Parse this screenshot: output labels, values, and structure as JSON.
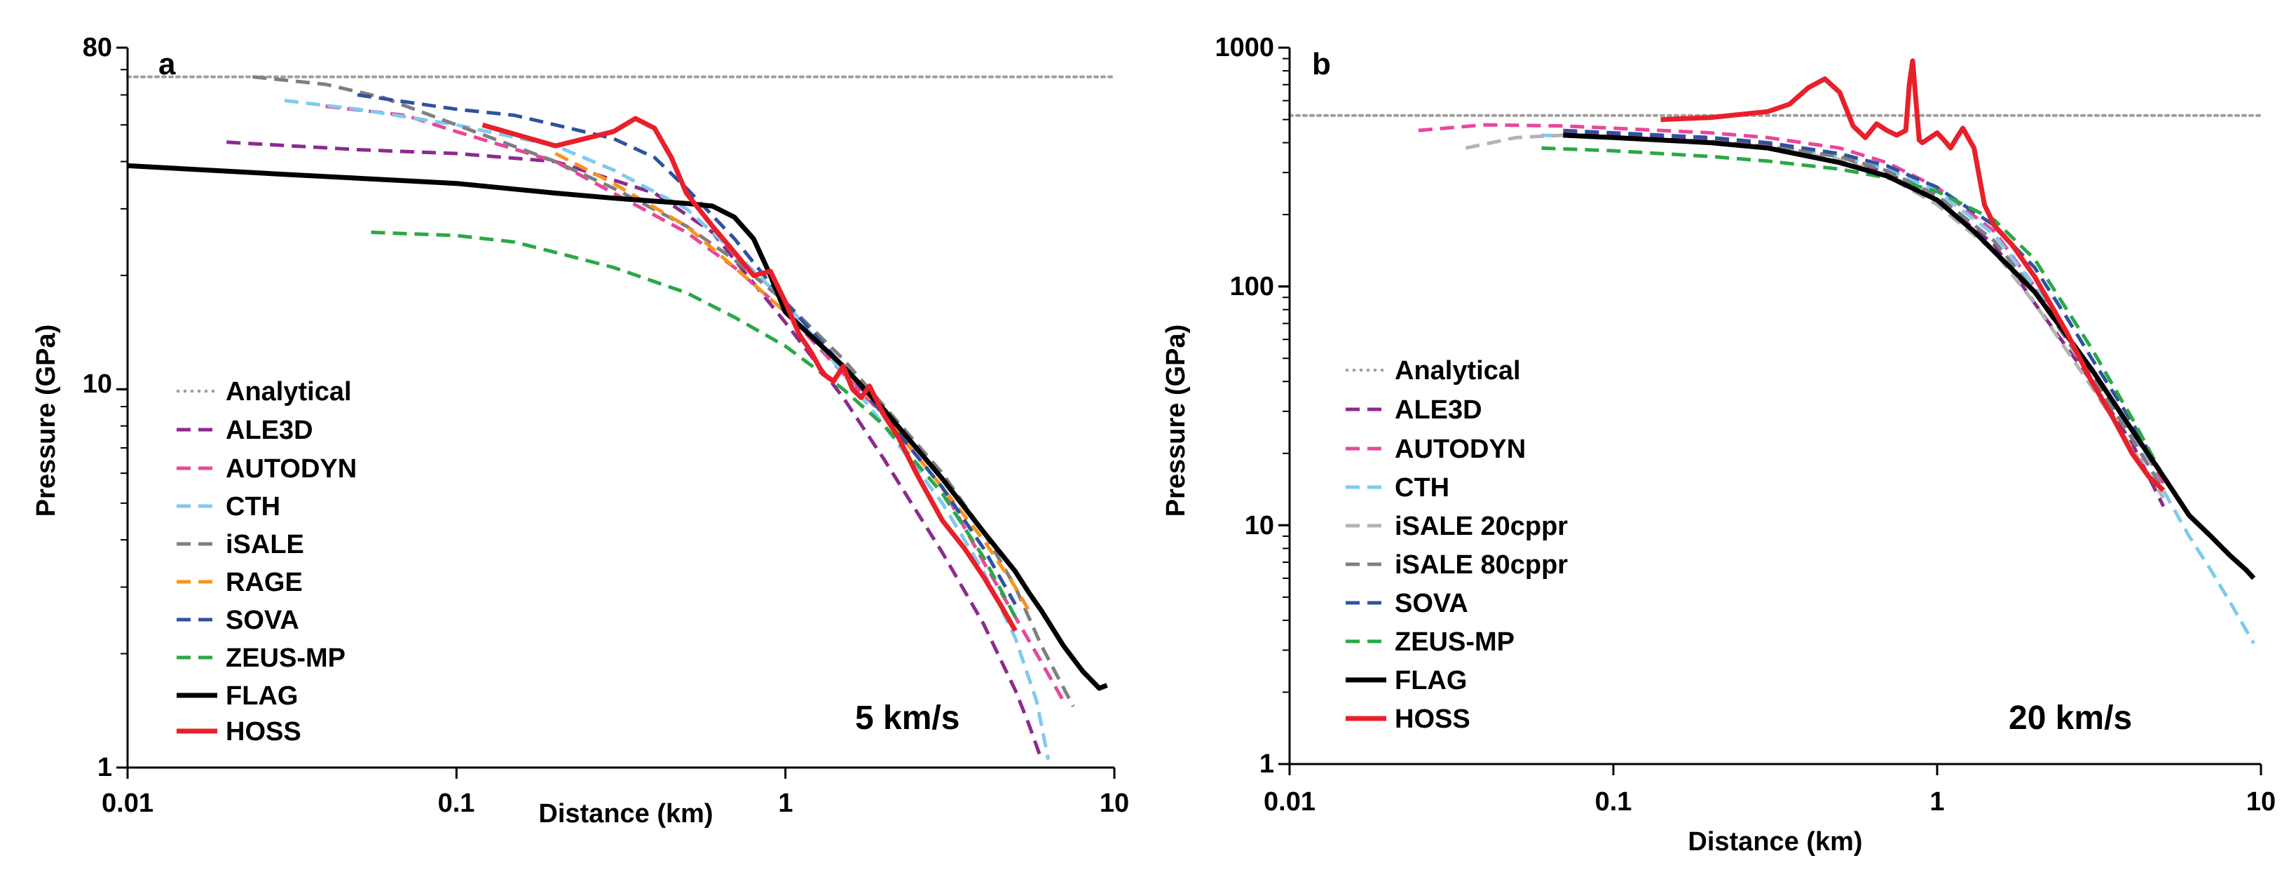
{
  "chart_data": [
    {
      "type": "line",
      "panel_label": "a",
      "xscale": "log",
      "yscale": "log",
      "xlim": [
        0.01,
        10
      ],
      "ylim": [
        1,
        80
      ],
      "xlabel": "Distance (km)",
      "ylabel": "Pressure (GPa)",
      "x_ticks": [
        {
          "v": 0.01,
          "label": "0.01"
        },
        {
          "v": 0.1,
          "label": "0.1"
        },
        {
          "v": 1,
          "label": "1"
        },
        {
          "v": 10,
          "label": "10"
        }
      ],
      "y_ticks": [
        {
          "v": 1,
          "label": "1"
        },
        {
          "v": 10,
          "label": "10"
        },
        {
          "v": 80,
          "label": "80"
        }
      ],
      "annotation": "5 km/s",
      "legend_position": "left",
      "series": [
        {
          "name": "Analytical",
          "color": "#9e9e9e",
          "dash": "dotted",
          "x": [
            0.01,
            10
          ],
          "y": [
            67,
            67
          ]
        },
        {
          "name": "ALE3D",
          "color": "#8b2a8f",
          "dash": "dashed",
          "x": [
            0.02,
            0.05,
            0.1,
            0.2,
            0.4,
            0.6,
            1.0,
            1.5,
            2.0,
            3.0,
            4.0,
            5.0,
            5.5,
            6.0
          ],
          "y": [
            45,
            43,
            42,
            40,
            33,
            26,
            15,
            9.5,
            6.5,
            3.7,
            2.4,
            1.6,
            1.3,
            1.05
          ]
        },
        {
          "name": "AUTODYN",
          "color": "#e8479a",
          "dash": "dashed",
          "x": [
            0.04,
            0.07,
            0.1,
            0.2,
            0.3,
            0.5,
            0.7,
            1.0,
            1.5,
            2.0,
            3.0,
            4.0,
            5.0,
            6.0,
            7.0
          ],
          "y": [
            56,
            53,
            48,
            40,
            33,
            26,
            21,
            16,
            11,
            8.5,
            5.5,
            3.5,
            2.5,
            1.9,
            1.5
          ]
        },
        {
          "name": "CTH",
          "color": "#7ecbed",
          "dash": "dashed",
          "x": [
            0.03,
            0.05,
            0.1,
            0.2,
            0.3,
            0.5,
            0.7,
            1.0,
            1.5,
            2.0,
            3.0,
            4.0,
            5.0,
            5.8,
            6.3
          ],
          "y": [
            58,
            55,
            50,
            44,
            38,
            30,
            23,
            17,
            11,
            8,
            5,
            3.3,
            2.2,
            1.5,
            1.05
          ]
        },
        {
          "name": "iSALE",
          "color": "#7f7f7f",
          "dash": "dashed",
          "x": [
            0.024,
            0.04,
            0.06,
            0.1,
            0.2,
            0.3,
            0.5,
            0.7,
            1.0,
            1.5,
            2.0,
            3.0,
            4.0,
            5.0,
            6.0,
            7.5
          ],
          "y": [
            67,
            64,
            59,
            50,
            40,
            34,
            27,
            22,
            17,
            12,
            9,
            6,
            4.2,
            3,
            2.1,
            1.45
          ]
        },
        {
          "name": "RAGE",
          "color": "#f7941d",
          "dash": "dashed",
          "x": [
            0.2,
            0.3,
            0.5,
            0.7,
            1.0,
            1.5,
            2.0,
            3.0,
            4.0,
            5.0,
            5.5
          ],
          "y": [
            42,
            35,
            27,
            21,
            16,
            11.5,
            8.5,
            5.5,
            4.0,
            3.0,
            2.6
          ]
        },
        {
          "name": "SOVA",
          "color": "#2f52a0",
          "dash": "dashed",
          "x": [
            0.05,
            0.1,
            0.15,
            0.2,
            0.3,
            0.4,
            0.5,
            0.7,
            1.0,
            1.5,
            2.0,
            3.0,
            4.0,
            5.0
          ],
          "y": [
            60,
            55,
            53,
            50,
            46,
            41,
            34,
            25,
            17,
            11.5,
            8.5,
            5.5,
            3.8,
            2.7
          ]
        },
        {
          "name": "ZEUS-MP",
          "color": "#2aa845",
          "dash": "dashed",
          "x": [
            0.055,
            0.1,
            0.15,
            0.2,
            0.3,
            0.5,
            0.7,
            1.0,
            1.5,
            2.0,
            3.0,
            4.0,
            5.0
          ],
          "y": [
            26,
            25.5,
            24.5,
            23,
            21,
            18,
            15.5,
            13,
            10,
            8,
            5.3,
            3.6,
            2.5
          ]
        },
        {
          "name": "FLAG",
          "color": "#000000",
          "dash": "solid",
          "x": [
            0.01,
            0.03,
            0.1,
            0.2,
            0.3,
            0.5,
            0.6,
            0.7,
            0.8,
            0.9,
            1.0,
            1.5,
            2.0,
            3.0,
            4.0,
            5.0,
            5.5,
            6.0,
            7.0,
            8.0,
            9.0,
            9.5
          ],
          "y": [
            39,
            37,
            35,
            33,
            32,
            31,
            30.5,
            28.5,
            25,
            20,
            16,
            11.5,
            8.8,
            5.8,
            4.2,
            3.3,
            2.9,
            2.6,
            2.1,
            1.8,
            1.62,
            1.65
          ]
        },
        {
          "name": "HOSS",
          "color": "#e8202a",
          "dash": "solid",
          "x": [
            0.12,
            0.2,
            0.3,
            0.35,
            0.4,
            0.45,
            0.5,
            0.6,
            0.7,
            0.8,
            0.9,
            1.0,
            1.1,
            1.2,
            1.3,
            1.4,
            1.5,
            1.6,
            1.7,
            1.8,
            2.0,
            2.2,
            2.5,
            3.0,
            3.5,
            4.0,
            4.5,
            5.0
          ],
          "y": [
            50,
            44,
            48,
            52,
            49,
            41,
            33,
            27,
            23,
            20,
            20.5,
            17,
            14,
            12.5,
            11,
            10.5,
            11.5,
            10,
            9.5,
            10.2,
            8.5,
            7.5,
            6.0,
            4.5,
            3.8,
            3.2,
            2.7,
            2.3
          ]
        }
      ]
    },
    {
      "type": "line",
      "panel_label": "b",
      "xscale": "log",
      "yscale": "log",
      "xlim": [
        0.01,
        10
      ],
      "ylim": [
        1,
        1000
      ],
      "xlabel": "Distance (km)",
      "ylabel": "Pressure (GPa)",
      "x_ticks": [
        {
          "v": 0.01,
          "label": "0.01"
        },
        {
          "v": 0.1,
          "label": "0.1"
        },
        {
          "v": 1,
          "label": "1"
        },
        {
          "v": 10,
          "label": "10"
        }
      ],
      "y_ticks": [
        {
          "v": 1,
          "label": "1"
        },
        {
          "v": 10,
          "label": "10"
        },
        {
          "v": 100,
          "label": "100"
        },
        {
          "v": 1000,
          "label": "1000"
        }
      ],
      "annotation": "20 km/s",
      "legend_position": "left",
      "series": [
        {
          "name": "Analytical",
          "color": "#9e9e9e",
          "dash": "dotted",
          "x": [
            0.01,
            10
          ],
          "y": [
            520,
            520
          ]
        },
        {
          "name": "ALE3D",
          "color": "#8b2a8f",
          "dash": "dashed",
          "x": [
            0.07,
            0.1,
            0.2,
            0.3,
            0.5,
            0.7,
            1.0,
            1.5,
            2.0,
            3.0,
            4.0,
            5.0
          ],
          "y": [
            440,
            430,
            410,
            390,
            350,
            300,
            230,
            150,
            85,
            40,
            22,
            12
          ]
        },
        {
          "name": "AUTODYN",
          "color": "#e8479a",
          "dash": "dashed",
          "x": [
            0.025,
            0.04,
            0.07,
            0.1,
            0.2,
            0.3,
            0.5,
            0.7,
            1.0,
            1.5,
            2.0,
            3.0,
            4.0,
            5.0
          ],
          "y": [
            450,
            475,
            470,
            460,
            440,
            420,
            380,
            330,
            260,
            170,
            100,
            45,
            25,
            15
          ]
        },
        {
          "name": "CTH",
          "color": "#7ecbed",
          "dash": "dashed",
          "x": [
            0.06,
            0.1,
            0.2,
            0.3,
            0.5,
            0.7,
            1.0,
            1.5,
            2.0,
            3.0,
            4.0,
            5.0,
            6.0,
            7.0,
            8.0,
            9.5
          ],
          "y": [
            430,
            420,
            400,
            380,
            350,
            310,
            250,
            165,
            100,
            45,
            24,
            14,
            9,
            6.5,
            4.8,
            3.2
          ]
        },
        {
          "name": "iSALE 20cppr",
          "color": "#b3b3b3",
          "dash": "dashed",
          "x": [
            0.035,
            0.05,
            0.07,
            0.1,
            0.2,
            0.3,
            0.5,
            0.7,
            1.0,
            1.5,
            2.0,
            3.0,
            4.0,
            5.0
          ],
          "y": [
            380,
            420,
            430,
            420,
            400,
            380,
            340,
            290,
            220,
            140,
            85,
            38,
            21,
            13
          ]
        },
        {
          "name": "iSALE 80cppr",
          "color": "#7f7f7f",
          "dash": "dashed",
          "x": [
            0.08,
            0.1,
            0.2,
            0.3,
            0.5,
            0.7,
            1.0,
            1.5,
            2.0,
            3.0,
            4.0,
            5.0
          ],
          "y": [
            430,
            420,
            405,
            385,
            350,
            305,
            240,
            155,
            95,
            42,
            23,
            14
          ]
        },
        {
          "name": "SOVA",
          "color": "#2f52a0",
          "dash": "dashed",
          "x": [
            0.07,
            0.1,
            0.2,
            0.3,
            0.5,
            0.7,
            1.0,
            1.5,
            2.0,
            2.5,
            3.0,
            4.0,
            5.0
          ],
          "y": [
            450,
            440,
            420,
            400,
            360,
            320,
            260,
            180,
            120,
            75,
            50,
            27,
            16
          ]
        },
        {
          "name": "ZEUS-MP",
          "color": "#2aa845",
          "dash": "dashed",
          "x": [
            0.06,
            0.1,
            0.2,
            0.3,
            0.5,
            0.7,
            1.0,
            1.5,
            2.0,
            3.0,
            4.0,
            5.0
          ],
          "y": [
            380,
            370,
            350,
            335,
            310,
            285,
            250,
            190,
            130,
            55,
            28,
            16
          ]
        },
        {
          "name": "FLAG",
          "color": "#000000",
          "dash": "solid",
          "x": [
            0.07,
            0.1,
            0.2,
            0.3,
            0.5,
            0.7,
            1.0,
            1.3,
            1.5,
            2.0,
            3.0,
            4.0,
            5.0,
            6.0,
            7.0,
            8.0,
            9.0,
            9.5
          ],
          "y": [
            430,
            420,
            400,
            380,
            330,
            290,
            230,
            170,
            140,
            95,
            45,
            25,
            16,
            11,
            9,
            7.5,
            6.5,
            6.0
          ]
        },
        {
          "name": "HOSS",
          "color": "#e8202a",
          "dash": "solid",
          "x": [
            0.14,
            0.2,
            0.3,
            0.35,
            0.4,
            0.45,
            0.5,
            0.55,
            0.6,
            0.65,
            0.7,
            0.75,
            0.8,
            0.82,
            0.84,
            0.86,
            0.88,
            0.9,
            1.0,
            1.05,
            1.1,
            1.15,
            1.2,
            1.3,
            1.4,
            1.5,
            1.7,
            2.0,
            2.5,
            3.0,
            3.5,
            4.0,
            4.5,
            5.0
          ],
          "y": [
            500,
            510,
            540,
            580,
            680,
            740,
            650,
            470,
            420,
            480,
            450,
            430,
            450,
            700,
            880,
            600,
            410,
            400,
            440,
            410,
            380,
            420,
            460,
            380,
            220,
            180,
            150,
            110,
            65,
            40,
            28,
            20,
            16,
            14
          ]
        }
      ]
    }
  ]
}
